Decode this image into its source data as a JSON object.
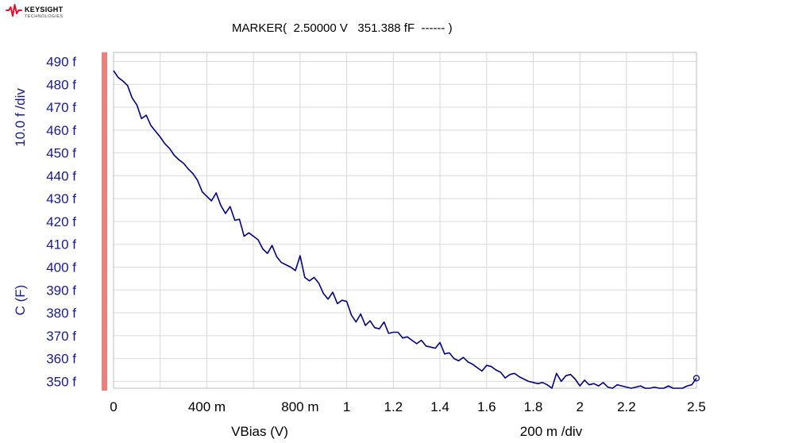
{
  "logo": {
    "brand": "KEYSIGHT",
    "sub": "TECHNOLOGIES",
    "color": "#e0102a"
  },
  "marker": {
    "text": "MARKER(  2.50000 V   351.388 fF  ------ )",
    "x": 2.5,
    "y": 351.388
  },
  "colors": {
    "trace": "#000080",
    "y_axis_text": "#1a1a8c",
    "grid": "#d9d9d9",
    "active_axis_bar": "#e8827f"
  },
  "chart_data": {
    "type": "line",
    "xlabel": "VBias (V)",
    "x_scale_label": "200 m /div",
    "ylabel": "C (F)",
    "y_scale_label": "10.0 f /div",
    "xlim": [
      0,
      2.5
    ],
    "ylim": [
      347,
      494
    ],
    "x_ticks": [
      {
        "value": 0,
        "label": "0"
      },
      {
        "value": 0.4,
        "label": "400 m"
      },
      {
        "value": 0.8,
        "label": "800 m"
      },
      {
        "value": 1.0,
        "label": "1"
      },
      {
        "value": 1.2,
        "label": "1.2"
      },
      {
        "value": 1.4,
        "label": "1.4"
      },
      {
        "value": 1.6,
        "label": "1.6"
      },
      {
        "value": 1.8,
        "label": "1.8"
      },
      {
        "value": 2.0,
        "label": "2"
      },
      {
        "value": 2.2,
        "label": "2.2"
      },
      {
        "value": 2.5,
        "label": "2.5"
      }
    ],
    "y_ticks": [
      {
        "value": 350,
        "label": "350 f"
      },
      {
        "value": 360,
        "label": "360 f"
      },
      {
        "value": 370,
        "label": "370 f"
      },
      {
        "value": 380,
        "label": "380 f"
      },
      {
        "value": 390,
        "label": "390 f"
      },
      {
        "value": 400,
        "label": "400 f"
      },
      {
        "value": 410,
        "label": "410 f"
      },
      {
        "value": 420,
        "label": "420 f"
      },
      {
        "value": 430,
        "label": "430 f"
      },
      {
        "value": 440,
        "label": "440 f"
      },
      {
        "value": 450,
        "label": "450 f"
      },
      {
        "value": 460,
        "label": "460 f"
      },
      {
        "value": 470,
        "label": "470 f"
      },
      {
        "value": 480,
        "label": "480 f"
      },
      {
        "value": 490,
        "label": "490 f"
      }
    ],
    "grid": true,
    "series": [
      {
        "x": [
          0.0,
          0.02,
          0.04,
          0.06,
          0.08,
          0.1,
          0.12,
          0.14,
          0.16,
          0.18,
          0.2,
          0.22,
          0.24,
          0.26,
          0.28,
          0.3,
          0.32,
          0.34,
          0.36,
          0.38,
          0.4,
          0.42,
          0.44,
          0.46,
          0.48,
          0.5,
          0.52,
          0.54,
          0.56,
          0.58,
          0.6,
          0.62,
          0.64,
          0.66,
          0.68,
          0.7,
          0.72,
          0.74,
          0.76,
          0.78,
          0.8,
          0.82,
          0.84,
          0.86,
          0.88,
          0.9,
          0.92,
          0.94,
          0.96,
          0.98,
          1.0,
          1.02,
          1.04,
          1.06,
          1.08,
          1.1,
          1.12,
          1.14,
          1.16,
          1.18,
          1.2,
          1.22,
          1.24,
          1.26,
          1.28,
          1.3,
          1.32,
          1.34,
          1.36,
          1.38,
          1.4,
          1.42,
          1.44,
          1.46,
          1.48,
          1.5,
          1.52,
          1.54,
          1.56,
          1.58,
          1.6,
          1.62,
          1.64,
          1.66,
          1.68,
          1.7,
          1.72,
          1.74,
          1.76,
          1.78,
          1.8,
          1.82,
          1.84,
          1.86,
          1.88,
          1.9,
          1.92,
          1.94,
          1.96,
          1.98,
          2.0,
          2.02,
          2.04,
          2.06,
          2.08,
          2.1,
          2.12,
          2.14,
          2.16,
          2.18,
          2.2,
          2.22,
          2.24,
          2.26,
          2.28,
          2.3,
          2.32,
          2.34,
          2.36,
          2.38,
          2.4,
          2.42,
          2.44,
          2.46,
          2.48,
          2.5
        ],
        "y": [
          486.0,
          483.0,
          481.5,
          479.5,
          474.0,
          471.0,
          465.0,
          466.5,
          462.0,
          459.5,
          457.0,
          454.0,
          452.0,
          449.0,
          447.0,
          445.5,
          443.0,
          441.0,
          438.0,
          433.0,
          431.0,
          429.0,
          432.5,
          427.0,
          423.5,
          426.5,
          420.5,
          421.0,
          413.5,
          415.0,
          413.5,
          412.0,
          408.0,
          406.0,
          409.5,
          404.5,
          402.0,
          401.0,
          400.0,
          398.5,
          405.0,
          395.5,
          394.0,
          395.5,
          393.0,
          388.5,
          386.0,
          389.0,
          384.0,
          385.5,
          385.0,
          379.0,
          376.0,
          379.5,
          374.5,
          376.5,
          373.5,
          373.0,
          376.0,
          371.0,
          371.5,
          371.5,
          369.0,
          369.5,
          368.0,
          366.5,
          368.0,
          365.5,
          365.0,
          364.5,
          367.0,
          362.0,
          362.5,
          360.0,
          359.0,
          360.5,
          358.5,
          357.5,
          356.0,
          354.5,
          357.0,
          356.5,
          355.0,
          354.0,
          351.5,
          353.0,
          353.5,
          352.0,
          351.0,
          350.0,
          349.5,
          349.0,
          349.5,
          348.5,
          347.0,
          353.5,
          350.0,
          352.5,
          353.0,
          351.0,
          348.0,
          350.5,
          348.5,
          349.0,
          348.0,
          349.5,
          347.5,
          347.0,
          348.5,
          348.0,
          347.5,
          347.0,
          347.5,
          348.0,
          347.0,
          347.0,
          347.5,
          347.0,
          347.0,
          348.0,
          347.0,
          347.0,
          347.0,
          348.0,
          348.5,
          351.388
        ]
      }
    ]
  }
}
